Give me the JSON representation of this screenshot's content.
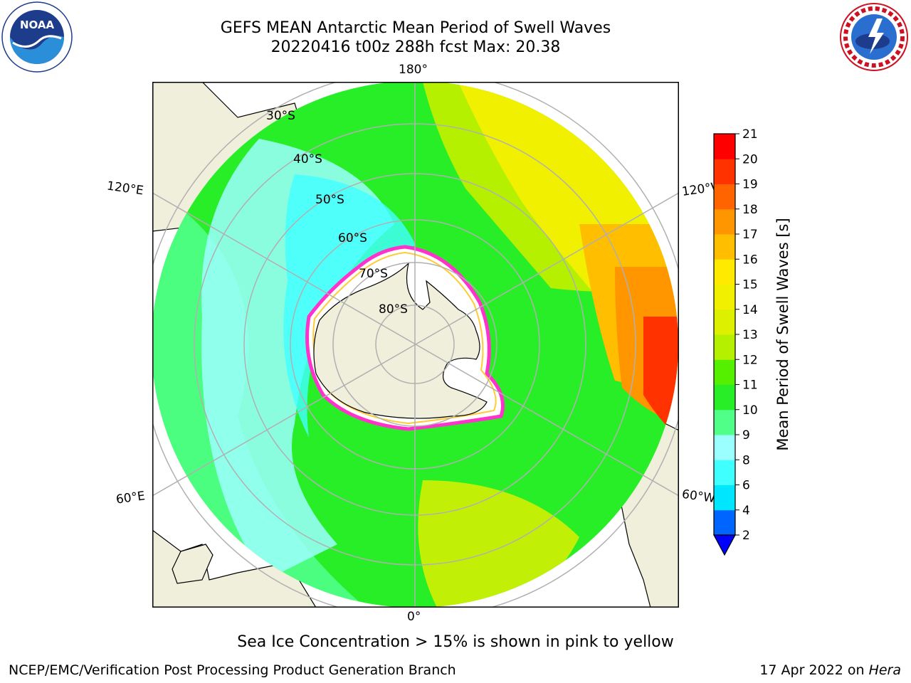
{
  "header": {
    "title_line1": "GEFS MEAN Antarctic Mean Period of Swell Waves",
    "title_line2": "20220416 t00z 288h fcst   Max: 20.38"
  },
  "logos": {
    "noaa": {
      "text": "NOAA",
      "ring_text": "NATIONAL OCEANIC AND ATMOSPHERIC ADMINISTRATION · U.S. DEPARTMENT OF COMMERCE"
    },
    "nws": {
      "ring_text": "NATIONAL WEATHER SERVICE"
    }
  },
  "map": {
    "projection": "south-polar stereographic",
    "lon_labels": {
      "top": "180°",
      "bottom": "0°",
      "upper_left": "120°E",
      "lower_left": "60°E",
      "upper_right": "120°W",
      "lower_right": "60°W"
    },
    "lat_labels": [
      "30°S",
      "40°S",
      "50°S",
      "60°S",
      "70°S",
      "80°S"
    ],
    "colors": {
      "land": "#efefdc",
      "ice_edge": "#ff33cc",
      "ice_inner": "#ffcc33",
      "grid": "#b0b0b0"
    }
  },
  "colorbar": {
    "label": "Mean Period of Swell Waves [s]",
    "ticks": [
      "2",
      "4",
      "6",
      "8",
      "9",
      "10",
      "11",
      "12",
      "13",
      "14",
      "15",
      "16",
      "17",
      "18",
      "19",
      "20",
      "21"
    ],
    "colors": [
      "#0064ff",
      "#00e6ff",
      "#40ffff",
      "#9cffff",
      "#50ff88",
      "#28ee28",
      "#55f000",
      "#b4f000",
      "#dcf000",
      "#f0f000",
      "#ffea00",
      "#ffbe00",
      "#ff9600",
      "#ff6400",
      "#ff3200",
      "#ff0000"
    ],
    "under_color": "#0000ff"
  },
  "footer": {
    "note": "Sea Ice Concentration > 15% is shown in pink to yellow",
    "producer": "NCEP/EMC/Verification Post Processing Product Generation Branch",
    "date": "17 Apr 2022 on",
    "machine": "Hera"
  }
}
